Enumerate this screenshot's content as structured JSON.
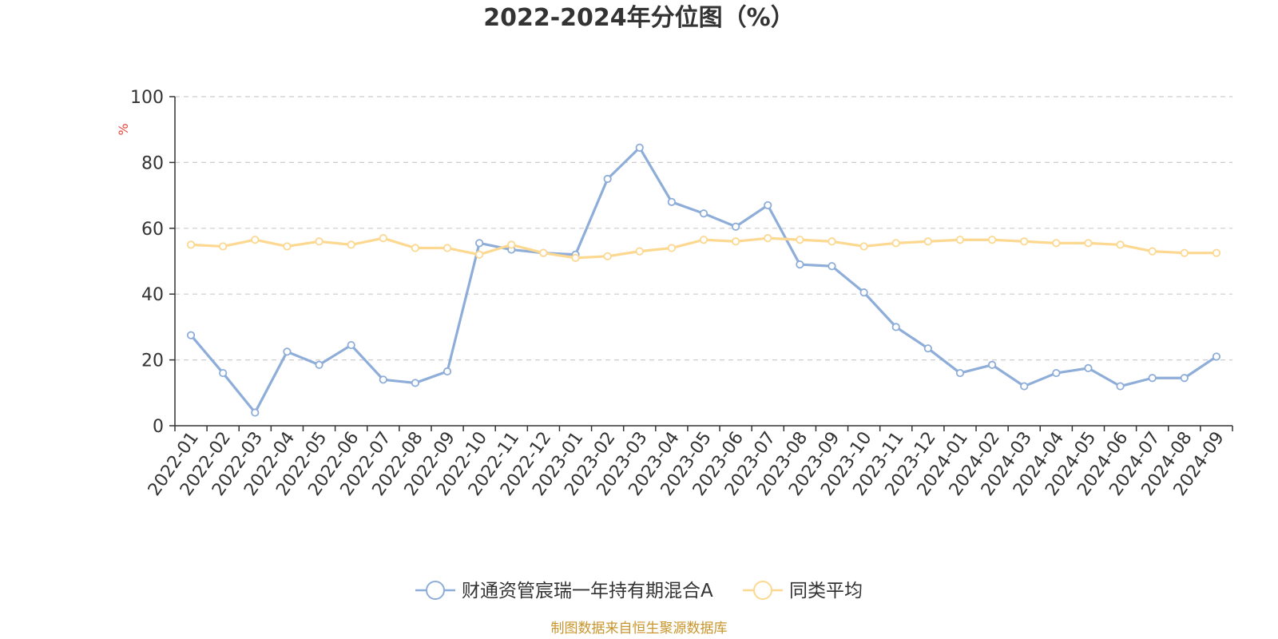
{
  "chart_data": {
    "type": "line",
    "title": "2022-2024年分位图（%）",
    "ylabel": "%",
    "xlabel": "",
    "ylim": [
      0,
      100
    ],
    "yticks": [
      0,
      20,
      40,
      60,
      80,
      100
    ],
    "grid": true,
    "legend_position": "bottom",
    "categories": [
      "2022-01",
      "2022-02",
      "2022-03",
      "2022-04",
      "2022-05",
      "2022-06",
      "2022-07",
      "2022-08",
      "2022-09",
      "2022-10",
      "2022-11",
      "2022-12",
      "2023-01",
      "2023-02",
      "2023-03",
      "2023-04",
      "2023-05",
      "2023-06",
      "2023-07",
      "2023-08",
      "2023-09",
      "2023-10",
      "2023-11",
      "2023-12",
      "2024-01",
      "2024-02",
      "2024-03",
      "2024-04",
      "2024-05",
      "2024-06",
      "2024-07",
      "2024-08",
      "2024-09"
    ],
    "series": [
      {
        "name": "财通资管宸瑞一年持有期混合A",
        "color": "#8eadd9",
        "values": [
          27.5,
          16,
          4,
          22.5,
          18.5,
          24.5,
          14,
          13,
          16.5,
          55.5,
          53.5,
          52.5,
          52,
          75,
          84.5,
          68,
          64.5,
          60.5,
          67,
          49,
          48.5,
          40.5,
          30,
          23.5,
          16,
          18.5,
          12,
          16,
          17.5,
          12,
          14.5,
          14.5,
          21
        ]
      },
      {
        "name": "同类平均",
        "color": "#fcd891",
        "values": [
          55,
          54.5,
          56.5,
          54.5,
          56,
          55,
          57,
          54,
          54,
          52,
          55,
          52.5,
          51,
          51.5,
          53,
          54,
          56.5,
          56,
          57,
          56.5,
          56,
          54.5,
          55.5,
          56,
          56.5,
          56.5,
          56,
          55.5,
          55.5,
          55,
          53,
          52.5,
          52.5
        ]
      }
    ]
  },
  "source_text": "制图数据来自恒生聚源数据库"
}
